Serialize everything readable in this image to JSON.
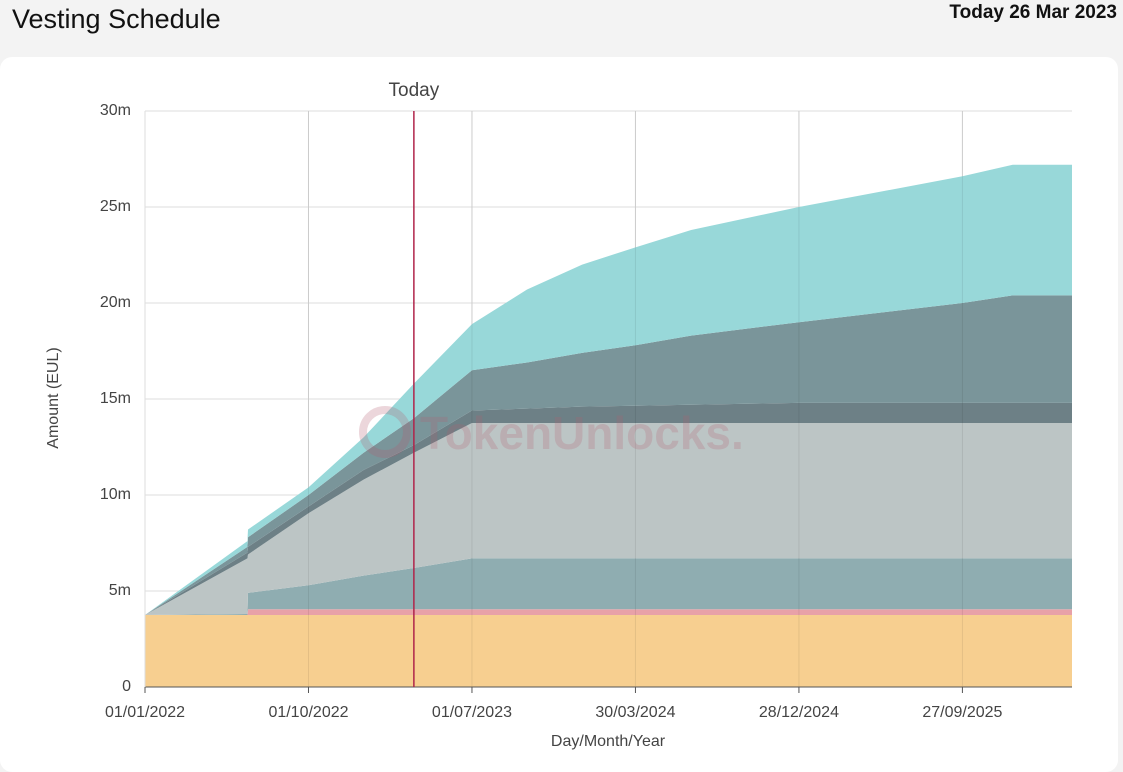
{
  "header": {
    "title": "Vesting Schedule",
    "today": "Today 26 Mar 2023"
  },
  "chart_data": {
    "type": "stacked-area",
    "y_label": "Amount (EUL)",
    "x_label": "Day/Month/Year",
    "watermark": "TokenUnlocks.",
    "annotation": {
      "label": "Today",
      "x": "2023-03-26",
      "color": "#b0244a"
    },
    "xlim": [
      "2022-01-01",
      "2026-03-29"
    ],
    "xticks": [
      {
        "value": "2022-01-01",
        "label": "01/01/2022"
      },
      {
        "value": "2022-10-01",
        "label": "01/10/2022"
      },
      {
        "value": "2023-07-01",
        "label": "01/07/2023"
      },
      {
        "value": "2024-03-30",
        "label": "30/03/2024"
      },
      {
        "value": "2024-12-28",
        "label": "28/12/2024"
      },
      {
        "value": "2025-09-27",
        "label": "27/09/2025"
      }
    ],
    "ylim": [
      0,
      30000000
    ],
    "yticks": [
      0,
      {
        "value": 5000000,
        "label": "5m"
      },
      {
        "value": 10000000,
        "label": "10m"
      },
      {
        "value": 15000000,
        "label": "15m"
      },
      {
        "value": 20000000,
        "label": "20m"
      },
      {
        "value": 25000000,
        "label": "25m"
      },
      {
        "value": 30000000,
        "label": "30m"
      }
    ],
    "grid": true,
    "x": [
      "2022-01-01",
      "2022-06-21",
      "2022-06-22",
      "2022-10-01",
      "2023-01-01",
      "2023-03-26",
      "2023-07-01",
      "2023-10-01",
      "2024-01-01",
      "2024-03-30",
      "2024-07-01",
      "2024-12-28",
      "2025-09-27",
      "2025-12-20",
      "2026-03-29"
    ],
    "series": [
      {
        "color": "#f7cf90",
        "values": [
          3750000,
          3750000,
          3750000,
          3750000,
          3750000,
          3750000,
          3750000,
          3750000,
          3750000,
          3750000,
          3750000,
          3750000,
          3750000,
          3750000,
          3750000
        ]
      },
      {
        "color": "#e8a1a8",
        "values": [
          0,
          0,
          300000,
          300000,
          300000,
          300000,
          300000,
          300000,
          300000,
          300000,
          300000,
          300000,
          300000,
          300000,
          300000
        ]
      },
      {
        "color": "#8fadb1",
        "values": [
          0,
          50000,
          850000,
          1250000,
          1750000,
          2150000,
          2650000,
          2650000,
          2650000,
          2650000,
          2650000,
          2650000,
          2650000,
          2650000,
          2650000
        ]
      },
      {
        "color": "#bcc5c5",
        "values": [
          0,
          2900000,
          2000000,
          3750000,
          5000000,
          6000000,
          7050000,
          7050000,
          7050000,
          7050000,
          7050000,
          7050000,
          7050000,
          7050000,
          7050000
        ]
      },
      {
        "color": "#6d8086",
        "values": [
          0,
          300000,
          400000,
          350000,
          500000,
          400000,
          650000,
          750000,
          850000,
          900000,
          950000,
          1050000,
          1050000,
          1050000,
          1050000
        ]
      },
      {
        "color": "#7a959a",
        "values": [
          0,
          300000,
          500000,
          600000,
          900000,
          1400000,
          2100000,
          2400000,
          2800000,
          3150000,
          3600000,
          4200000,
          5200000,
          5600000,
          5600000
        ]
      },
      {
        "color": "#98d8d9",
        "values": [
          0,
          300000,
          400000,
          400000,
          800000,
          1800000,
          2400000,
          3800000,
          4600000,
          5100000,
          5500000,
          6000000,
          6600000,
          6800000,
          6800000
        ]
      }
    ]
  }
}
